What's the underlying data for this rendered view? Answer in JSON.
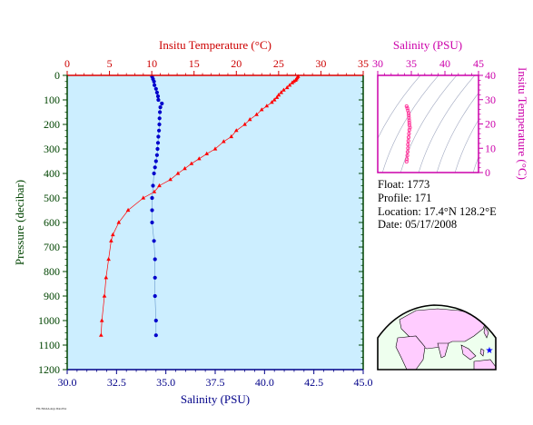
{
  "chart_data": [
    {
      "type": "line",
      "title": "",
      "top_axis": {
        "label": "Insitu Temperature (°C)",
        "range": [
          0,
          35
        ],
        "ticks": [
          0,
          5,
          10,
          15,
          20,
          25,
          30,
          35
        ],
        "color": "#cc0000"
      },
      "bottom_axis": {
        "label": "Salinity (PSU)",
        "range": [
          30.0,
          45.0
        ],
        "ticks": [
          "30.0",
          "32.5",
          "35.0",
          "37.5",
          "40.0",
          "42.5",
          "45.0"
        ],
        "color": "#000088"
      },
      "left_axis": {
        "label": "Pressure (decibar)",
        "range": [
          0,
          1200
        ],
        "inverted": true,
        "ticks": [
          0,
          100,
          200,
          300,
          400,
          500,
          600,
          700,
          800,
          900,
          1000,
          1100,
          1200
        ],
        "color": "#004400"
      },
      "plot_background": "#cceeff",
      "series": [
        {
          "variable": "temperature",
          "color": "#ff0000",
          "marker": "triangle",
          "pressure": [
            5,
            10,
            15,
            20,
            25,
            30,
            40,
            50,
            60,
            70,
            80,
            90,
            100,
            110,
            125,
            140,
            160,
            180,
            200,
            225,
            250,
            270,
            300,
            320,
            340,
            360,
            380,
            400,
            425,
            450,
            475,
            500,
            550,
            600,
            650,
            675,
            750,
            825,
            900,
            1000,
            1060
          ],
          "values": [
            27.3,
            27.2,
            27.1,
            27.0,
            26.8,
            26.6,
            26.3,
            26.0,
            25.6,
            25.3,
            25.0,
            24.8,
            24.5,
            24.2,
            23.6,
            23.0,
            22.4,
            21.6,
            21.0,
            20.0,
            19.4,
            18.5,
            17.5,
            16.5,
            15.6,
            14.7,
            13.9,
            13.1,
            12.2,
            10.9,
            10.3,
            9.0,
            7.2,
            6.1,
            5.4,
            5.2,
            4.9,
            4.6,
            4.4,
            4.1,
            4.0
          ]
        },
        {
          "variable": "salinity",
          "color": "#0000cc",
          "marker": "dot",
          "pressure": [
            5,
            15,
            25,
            40,
            55,
            70,
            85,
            100,
            115,
            130,
            150,
            175,
            200,
            225,
            250,
            275,
            300,
            325,
            350,
            375,
            400,
            450,
            500,
            550,
            600,
            675,
            750,
            825,
            900,
            1000,
            1060
          ],
          "values": [
            34.3,
            34.35,
            34.4,
            34.42,
            34.5,
            34.55,
            34.6,
            34.62,
            34.8,
            34.72,
            34.7,
            34.68,
            34.67,
            34.65,
            34.62,
            34.6,
            34.58,
            34.55,
            34.5,
            34.45,
            34.4,
            34.35,
            34.3,
            34.3,
            34.3,
            34.4,
            34.45,
            34.45,
            34.45,
            34.5,
            34.5
          ]
        }
      ]
    },
    {
      "type": "scatter",
      "title": "",
      "x_axis": {
        "label": "Salinity (PSU)",
        "range": [
          30,
          45
        ],
        "ticks": [
          30,
          35,
          40,
          45
        ],
        "color": "#cc00aa"
      },
      "y_axis": {
        "label": "Insitu Temperature (°C)",
        "range": [
          0,
          40
        ],
        "ticks": [
          0,
          10,
          20,
          30,
          40
        ],
        "color": "#cc00aa"
      },
      "marker_color": "#ff3399",
      "salinity": [
        34.3,
        34.4,
        34.5,
        34.6,
        34.62,
        34.65,
        34.68,
        34.7,
        34.72,
        34.8,
        34.7,
        34.65,
        34.6,
        34.55,
        34.5,
        34.5,
        34.45,
        34.4,
        34.35,
        34.3
      ],
      "temperature": [
        27.3,
        26.5,
        25.5,
        24.5,
        23.5,
        22.5,
        21.5,
        20.5,
        19.5,
        18.5,
        17.5,
        16.0,
        14.5,
        13.0,
        11.5,
        10.0,
        8.5,
        7.0,
        5.5,
        4.5
      ]
    }
  ],
  "float_info": {
    "float": "Float:  1773",
    "profile": "Profile:  171",
    "location": "Location:  17.4°N  128.2°E",
    "date": "Date:  05/17/2008"
  },
  "map": {
    "land_color": "#ffccff",
    "ocean_color": "#eeffee",
    "marker_color": "#0000ff"
  },
  "credit_text": "FSL/NOAA Argo Data Plot"
}
